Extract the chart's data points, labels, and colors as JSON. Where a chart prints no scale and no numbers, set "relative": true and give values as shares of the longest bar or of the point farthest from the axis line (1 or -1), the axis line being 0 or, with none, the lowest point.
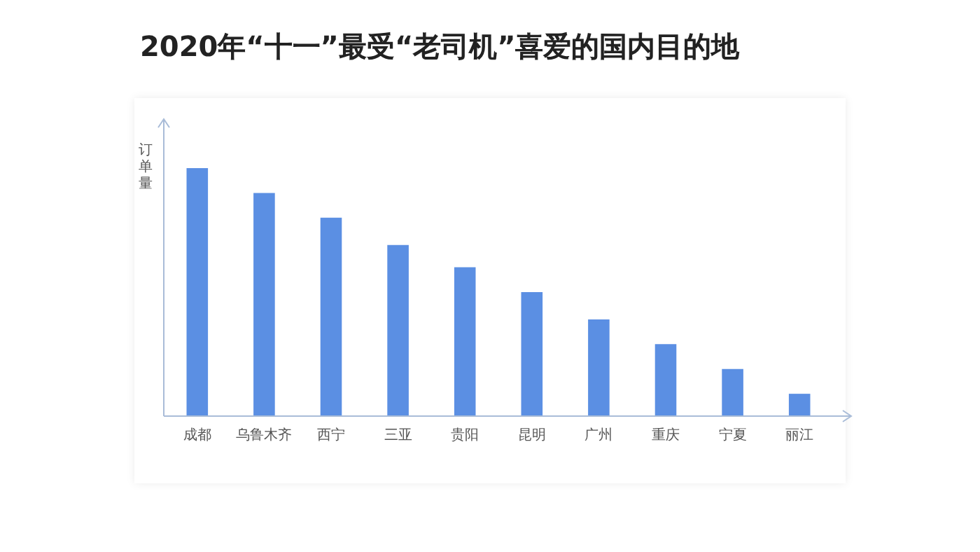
{
  "chart_data": {
    "type": "bar",
    "title": "2020年“十一”最受“老司机”喜爱的国内目的地",
    "ylabel": "订单量",
    "relative": true,
    "categories": [
      "成都",
      "乌鲁木齐",
      "西宁",
      "三亚",
      "贵阳",
      "昆明",
      "广州",
      "重庆",
      "宁夏",
      "丽江"
    ],
    "values": [
      1,
      0.9,
      0.8,
      0.69,
      0.6,
      0.5,
      0.39,
      0.29,
      0.19,
      0.09
    ],
    "color": "#5b8fe3",
    "grid": false,
    "legend": false
  }
}
